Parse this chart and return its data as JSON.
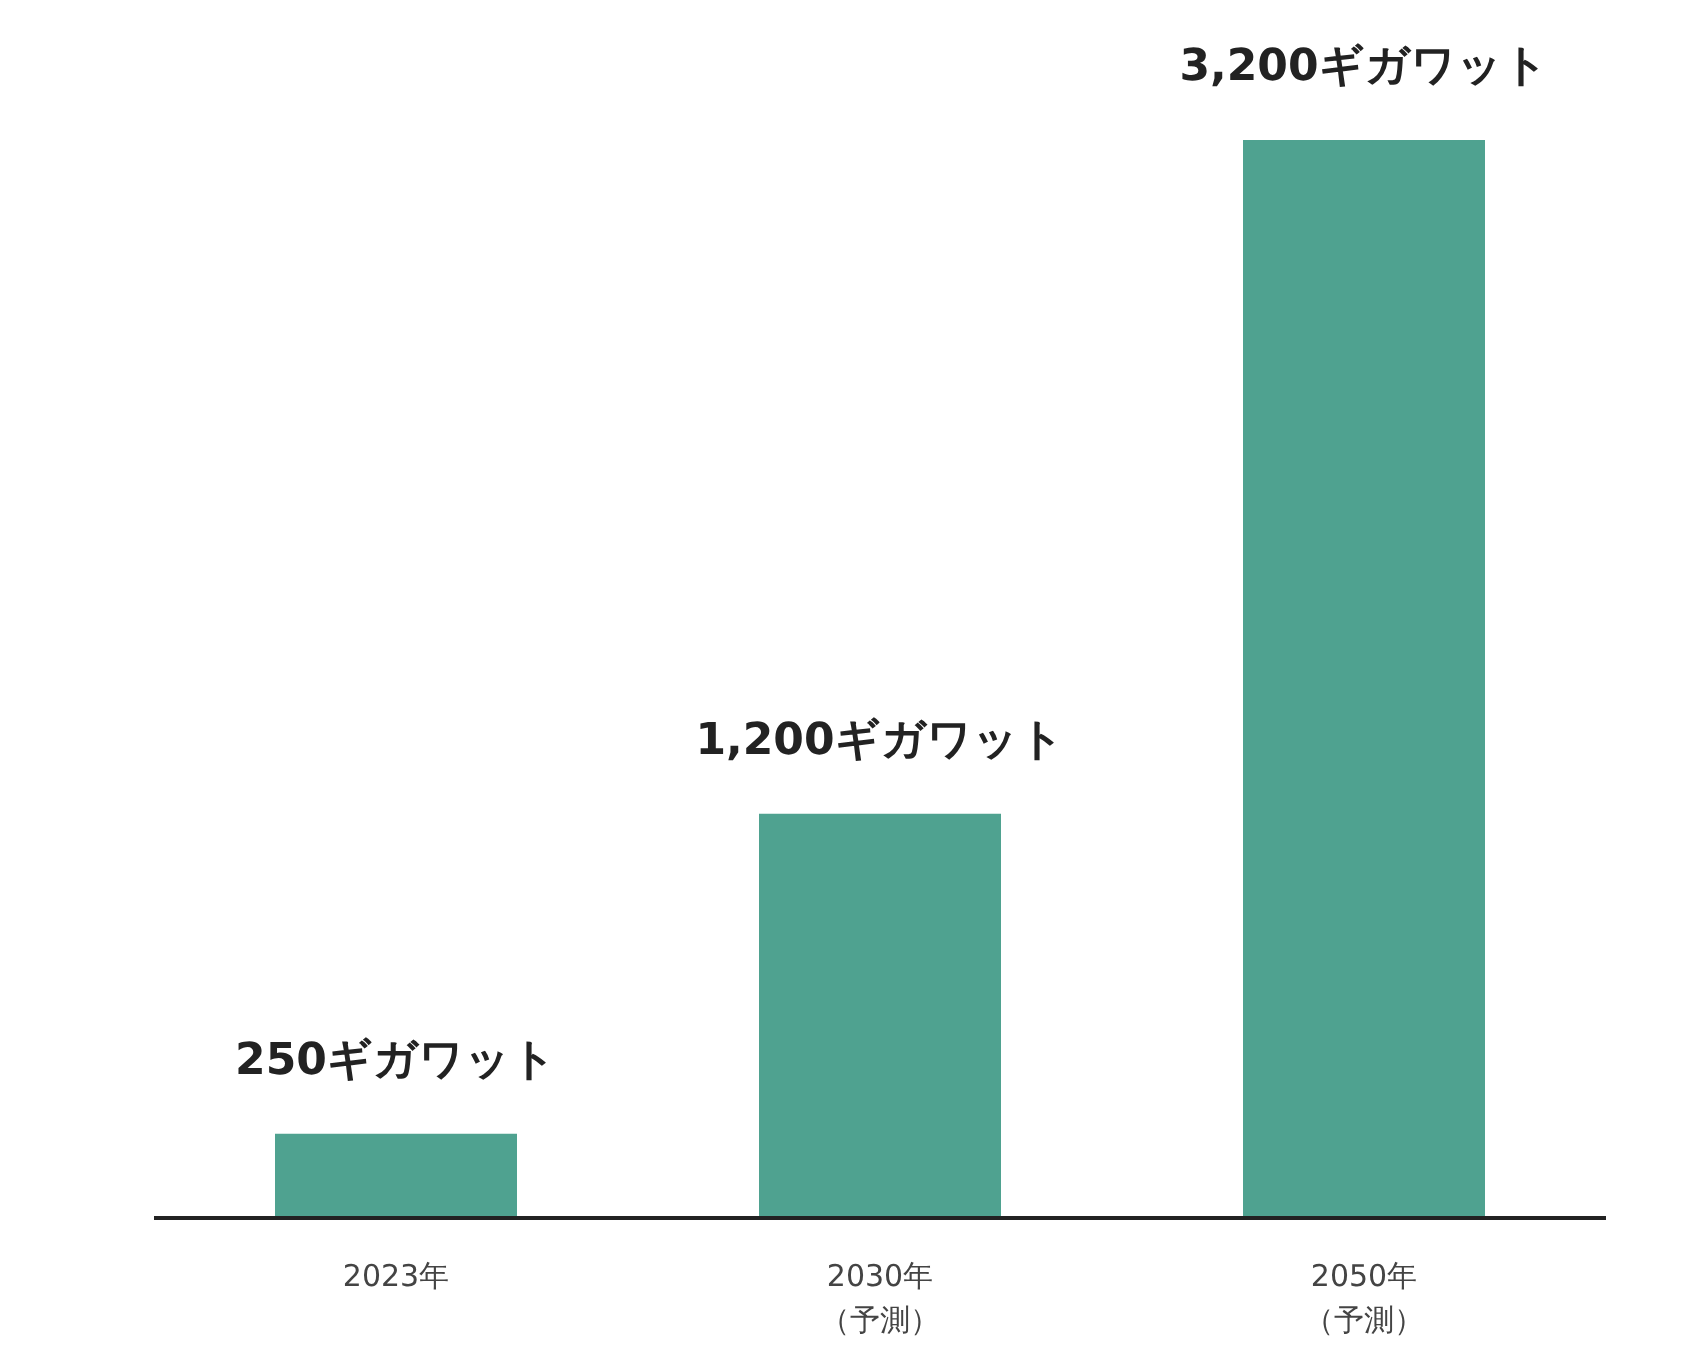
{
  "chart_data": {
    "type": "bar",
    "categories": [
      "2023年",
      "2030年（予測）",
      "2050年（予測）"
    ],
    "values": [
      250,
      1200,
      3200
    ],
    "value_labels": [
      "250ギガワット",
      "1,200ギガワット",
      "3,200ギガワット"
    ],
    "color": "#4fa290",
    "grid": false,
    "legend": false
  }
}
